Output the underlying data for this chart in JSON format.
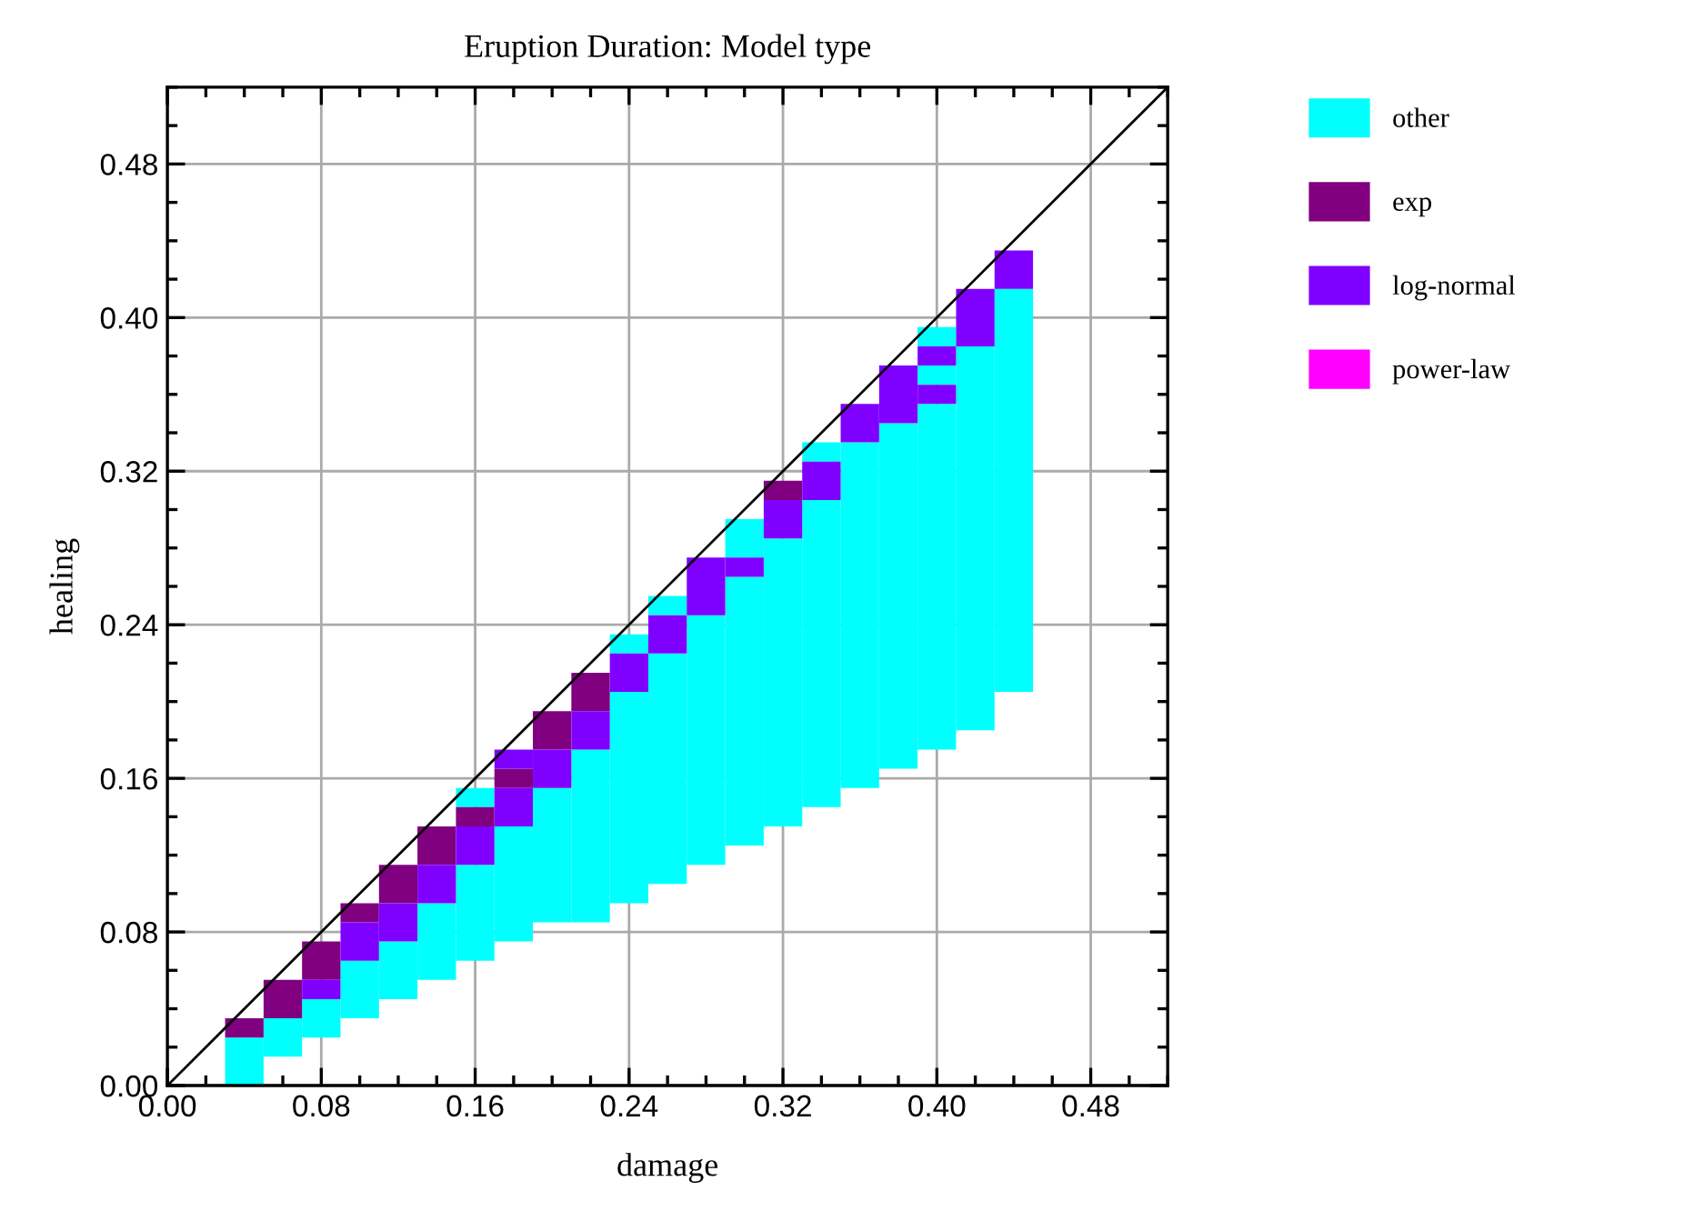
{
  "chart_data": {
    "type": "bar",
    "title": "Eruption Duration: Model type",
    "xlabel": "damage",
    "ylabel": "healing",
    "series": [
      {
        "name": "other",
        "color": "#00ffff",
        "x": [
          0.04,
          0.06,
          0.08,
          0.1,
          0.12,
          0.14,
          0.16,
          0.18,
          0.2,
          0.22,
          0.24,
          0.26,
          0.28,
          0.3,
          0.32,
          0.34,
          0.36,
          0.38,
          0.4,
          0.42,
          0.44
        ],
        "base": [
          0,
          0.015,
          0.025,
          0.035,
          0.045,
          0.055,
          0.065,
          0.075,
          0.085,
          0.085,
          0.095,
          0.105,
          0.115,
          0.125,
          0.135,
          0.145,
          0.155,
          0.165,
          0.175,
          0.185,
          0.205
        ],
        "values": [
          0.025,
          0.02,
          0.02,
          0.03,
          0.03,
          0.04,
          0.05,
          0.06,
          0.07,
          0.09,
          0.11,
          0.12,
          0.13,
          0.14,
          0.15,
          0.16,
          0.18,
          0.18,
          0.18,
          0.2,
          0.21
        ]
      },
      {
        "color": "#00ffff",
        "x": [
          0.16,
          0.24,
          0.26,
          0.3,
          0.34,
          0.4
        ],
        "base": [
          0.145,
          0.225,
          0.245,
          0.275,
          0.325,
          0.365
        ],
        "values": [
          0.01,
          0.01,
          0.01,
          0.02,
          0.01,
          0.01
        ]
      },
      {
        "color": "#00ffff",
        "x": [
          0.4
        ],
        "base": [
          0.385
        ],
        "values": [
          0.01
        ]
      },
      {
        "name": "exp",
        "color": "#800080",
        "x": [
          0.04,
          0.06,
          0.08,
          0.1,
          0.12,
          0.14,
          0.16,
          0.18,
          0.2,
          0.22,
          0.32
        ],
        "base": [
          0.025,
          0.035,
          0.055,
          0.085,
          0.095,
          0.115,
          0.135,
          0.155,
          0.175,
          0.195,
          0.305
        ],
        "values": [
          0.01,
          0.02,
          0.02,
          0.01,
          0.02,
          0.02,
          0.01,
          0.01,
          0.02,
          0.02,
          0.01
        ]
      },
      {
        "name": "log-normal",
        "color": "#8000ff",
        "x": [
          0.08,
          0.1,
          0.12,
          0.14,
          0.16,
          0.18,
          0.2,
          0.22,
          0.24,
          0.26,
          0.28,
          0.3,
          0.32,
          0.34,
          0.36,
          0.38,
          0.4,
          0.42,
          0.44
        ],
        "base": [
          0.045,
          0.065,
          0.075,
          0.095,
          0.115,
          0.135,
          0.155,
          0.175,
          0.205,
          0.225,
          0.245,
          0.265,
          0.285,
          0.305,
          0.335,
          0.345,
          0.355,
          0.385,
          0.415
        ],
        "values": [
          0.01,
          0.02,
          0.02,
          0.02,
          0.02,
          0.02,
          0.02,
          0.02,
          0.02,
          0.02,
          0.03,
          0.01,
          0.02,
          0.02,
          0.02,
          0.03,
          0.01,
          0.03,
          0.02
        ]
      },
      {
        "color": "#8000ff",
        "x": [
          0.18,
          0.4
        ],
        "base": [
          0.165,
          0.375
        ],
        "values": [
          0.01,
          0.01
        ]
      },
      {
        "name": "power-law",
        "color": "#ff00ff"
      },
      {
        "type": "line",
        "color": "#000000",
        "x": [
          0,
          0.52
        ],
        "values": [
          0,
          0.52
        ]
      }
    ],
    "xlim": [
      0,
      0.52
    ],
    "ylim": [
      0,
      0.52
    ],
    "xticks": [
      {
        "value": 0,
        "label": "0.00"
      },
      {
        "value": 0.08,
        "label": "0.08"
      },
      {
        "value": 0.16,
        "label": "0.16"
      },
      {
        "value": 0.24,
        "label": "0.24"
      },
      {
        "value": 0.32,
        "label": "0.32"
      },
      {
        "value": 0.4,
        "label": "0.40"
      },
      {
        "value": 0.48,
        "label": "0.48"
      }
    ],
    "yticks": [
      {
        "value": 0,
        "label": "0.00"
      },
      {
        "value": 0.08,
        "label": "0.08"
      },
      {
        "value": 0.16,
        "label": "0.16"
      },
      {
        "value": 0.24,
        "label": "0.24"
      },
      {
        "value": 0.32,
        "label": "0.32"
      },
      {
        "value": 0.4,
        "label": "0.40"
      },
      {
        "value": 0.48,
        "label": "0.48"
      }
    ],
    "grid": true,
    "legend": "right"
  }
}
